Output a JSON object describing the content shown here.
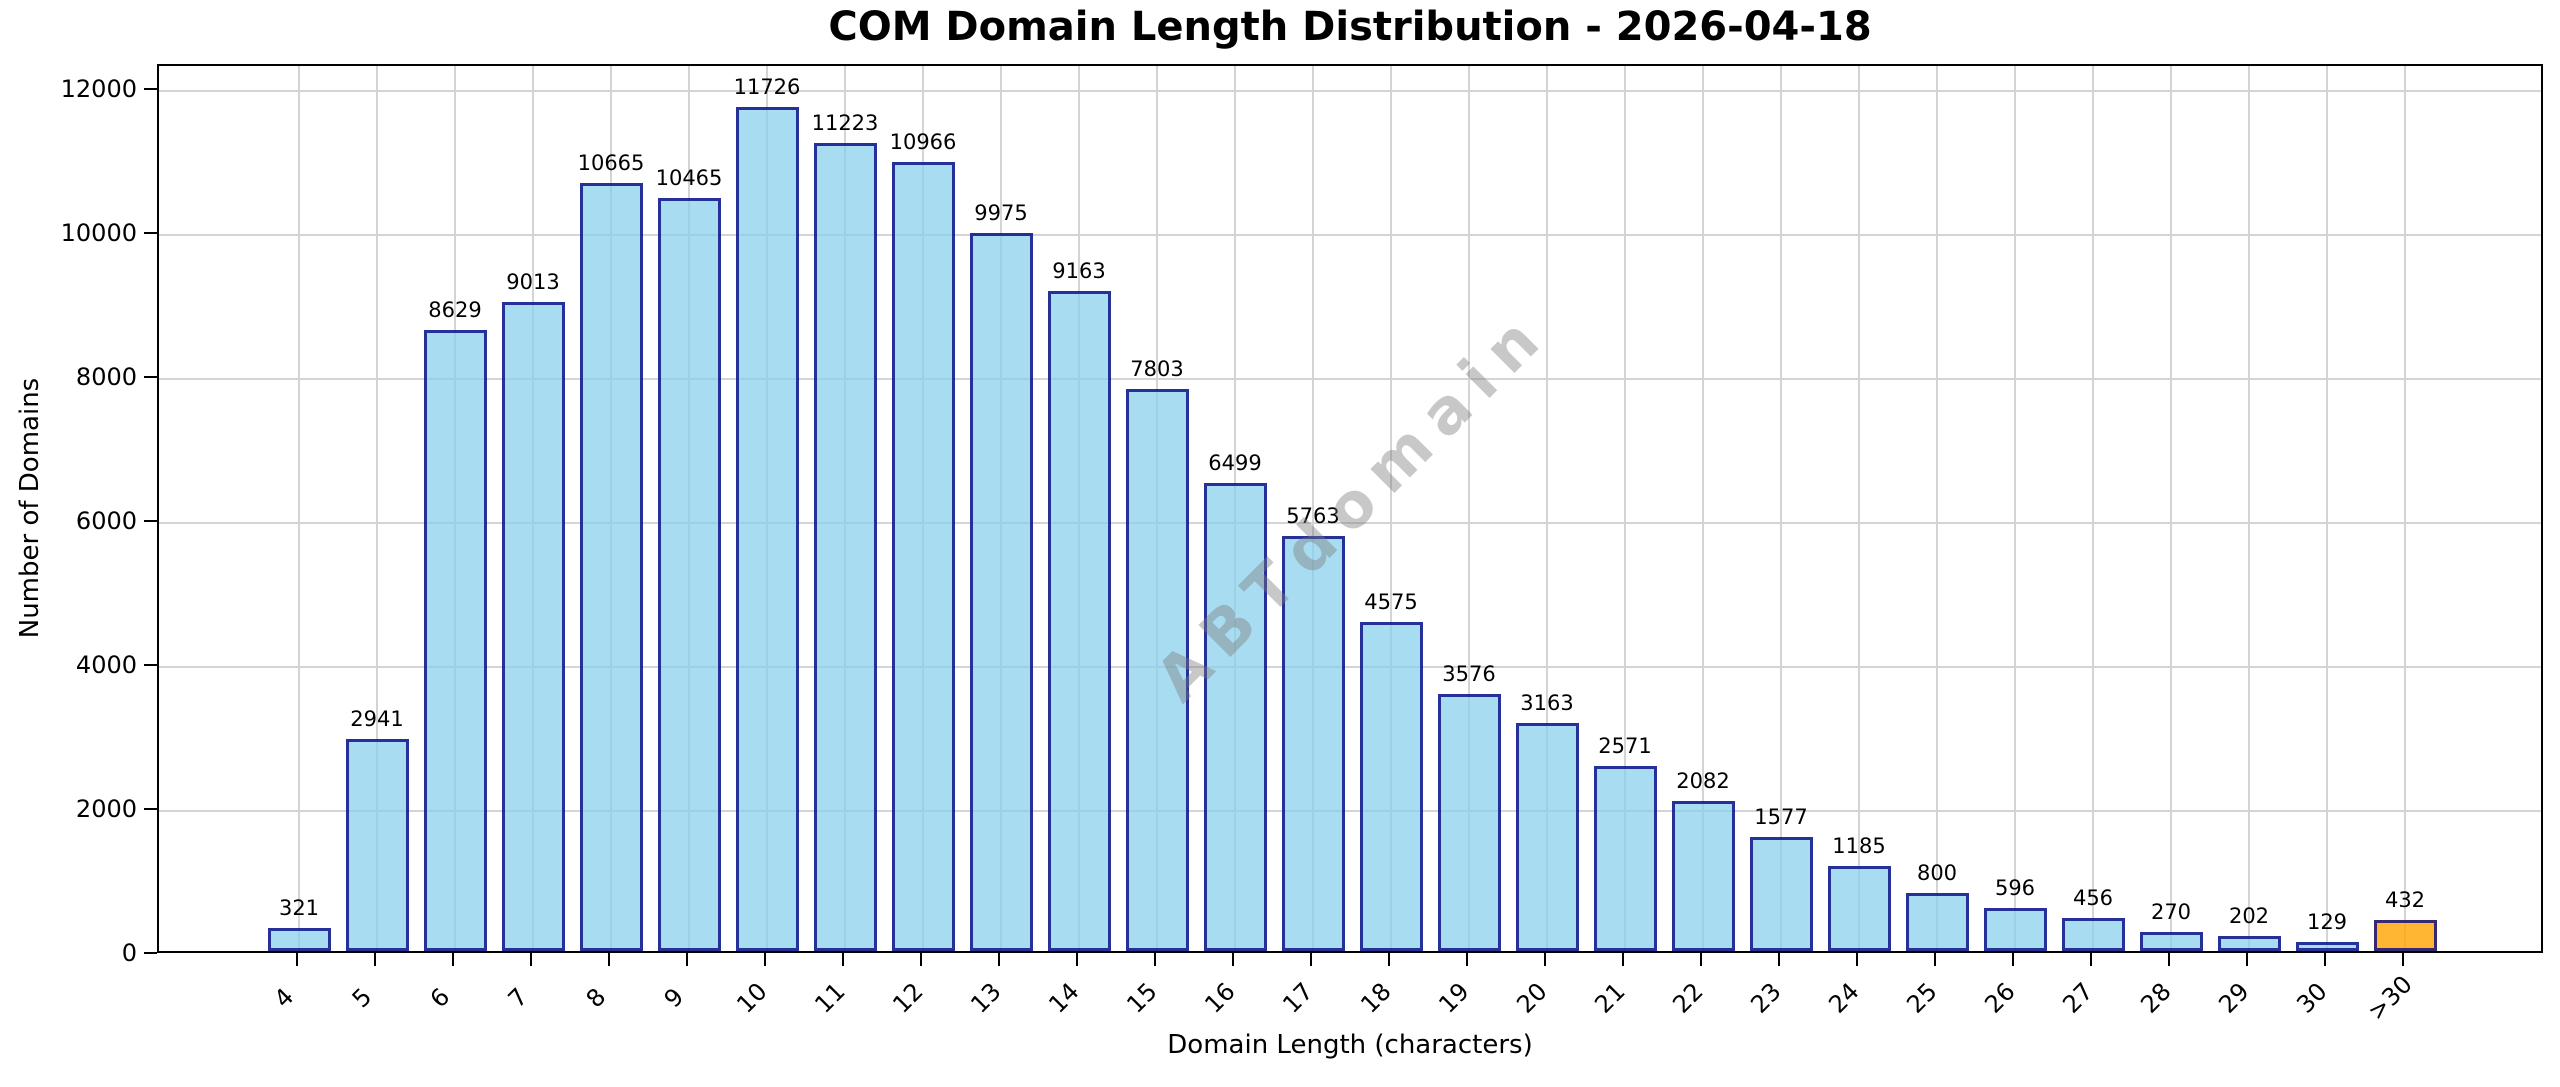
{
  "chart_data": {
    "type": "bar",
    "title": "COM Domain Length Distribution - 2026-04-18",
    "xlabel": "Domain Length (characters)",
    "ylabel": "Number of Domains",
    "categories": [
      "4",
      "5",
      "6",
      "7",
      "8",
      "9",
      "10",
      "11",
      "12",
      "13",
      "14",
      "15",
      "16",
      "17",
      "18",
      "19",
      "20",
      "21",
      "22",
      "23",
      "24",
      "25",
      "26",
      "27",
      "28",
      "29",
      "30",
      ">30"
    ],
    "values": [
      321,
      2941,
      8629,
      9013,
      10665,
      10465,
      11726,
      11223,
      10966,
      9975,
      9163,
      7803,
      6499,
      5763,
      4575,
      3576,
      3163,
      2571,
      2082,
      1577,
      1185,
      800,
      596,
      456,
      270,
      202,
      129,
      432
    ],
    "bar_value_labels": [
      "321",
      "2941",
      "8629",
      "9013",
      "10665",
      "10465",
      "11726",
      "11223",
      "10966",
      "9975",
      "9163",
      "7803",
      "6499",
      "5763",
      "4575",
      "3576",
      "3163",
      "2571",
      "2082",
      "1577",
      "1185",
      "800",
      "596",
      "456",
      "270",
      "202",
      "129",
      "432"
    ],
    "highlight_category": ">30",
    "ylim": [
      0,
      12350
    ],
    "yticks": [
      0,
      2000,
      4000,
      6000,
      8000,
      10000,
      12000
    ],
    "grid": true,
    "legend_position": "none",
    "watermark": "ABTdomain",
    "colors": {
      "bar_fill": "rgba(135,206,235,0.72)",
      "bar_edge": "rgba(0,0,128,0.78)",
      "highlight_fill": "rgba(255,165,0,0.8)",
      "grid": "#d4d4d4",
      "spine": "#000000",
      "watermark_text": "rgba(125,125,125,0.42)"
    }
  }
}
